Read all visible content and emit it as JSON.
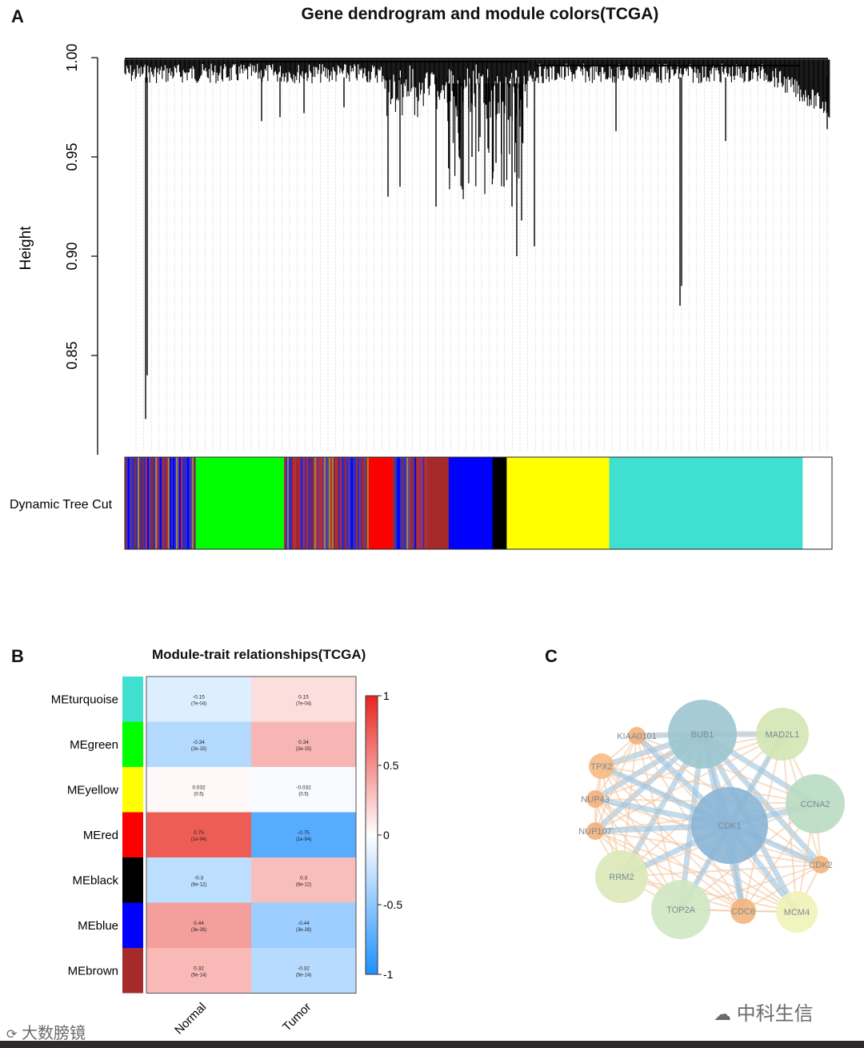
{
  "panelA": {
    "letter": "A",
    "title": "Gene dendrogram and module colors(TCGA)",
    "ylabel": "Height",
    "colorbar_label": "Dynamic Tree Cut"
  },
  "panelB": {
    "letter": "B",
    "title": "Module-trait relationships(TCGA)"
  },
  "panelC": {
    "letter": "C"
  },
  "watermark_left": "大数膀镜",
  "watermark_right": "中科生信",
  "chart_data": [
    {
      "type": "dendrogram",
      "title": "Gene dendrogram and module colors(TCGA)",
      "ylabel": "Height",
      "ylim": [
        0.8,
        1.0
      ],
      "yticks": [
        {
          "value": 0.85,
          "label": "0.85"
        },
        {
          "value": 0.9,
          "label": "0.90"
        },
        {
          "value": 0.95,
          "label": "0.95"
        },
        {
          "value": 1.0,
          "label": "1.00"
        }
      ],
      "module_bar": {
        "label": "Dynamic Tree Cut",
        "segments": [
          {
            "module": "mixed",
            "color": "#5b3aa0",
            "fraction": 0.1
          },
          {
            "module": "green",
            "color": "#00ff00",
            "fraction": 0.125
          },
          {
            "module": "mixed",
            "color": "#7a2b4a",
            "fraction": 0.12
          },
          {
            "module": "red",
            "color": "#ff0000",
            "fraction": 0.033
          },
          {
            "module": "mixed",
            "color": "#3a2ab5",
            "fraction": 0.05
          },
          {
            "module": "brown",
            "color": "#a52a2a",
            "fraction": 0.03
          },
          {
            "module": "blue",
            "color": "#0000ff",
            "fraction": 0.062
          },
          {
            "module": "black",
            "color": "#000000",
            "fraction": 0.02
          },
          {
            "module": "yellow",
            "color": "#ffff00",
            "fraction": 0.145
          },
          {
            "module": "turquoise",
            "color": "#40e0d0",
            "fraction": 0.273
          }
        ]
      }
    },
    {
      "type": "heatmap",
      "title": "Module-trait relationships(TCGA)",
      "rows": [
        "MEturquoise",
        "MEgreen",
        "MEyellow",
        "MEred",
        "MEblack",
        "MEblue",
        "MEbrown"
      ],
      "row_colors": [
        "#40e0d0",
        "#00ff00",
        "#ffff00",
        "#ff0000",
        "#000000",
        "#0000ff",
        "#a52a2a"
      ],
      "columns": [
        "Normal",
        "Tumor"
      ],
      "values": [
        [
          -0.15,
          0.15
        ],
        [
          -0.34,
          0.34
        ],
        [
          0.032,
          -0.032
        ],
        [
          0.75,
          -0.75
        ],
        [
          -0.3,
          0.3
        ],
        [
          0.44,
          -0.44
        ],
        [
          0.32,
          -0.32
        ]
      ],
      "cell_text": [
        [
          [
            "-0.15",
            "(7e-04)"
          ],
          [
            "0.15",
            "(7e-04)"
          ]
        ],
        [
          [
            "-0.34",
            "(2e-15)"
          ],
          [
            "0.34",
            "(2e-15)"
          ]
        ],
        [
          [
            "0.032",
            "(0.5)"
          ],
          [
            "-0.032",
            "(0.5)"
          ]
        ],
        [
          [
            "0.75",
            "(1e-94)"
          ],
          [
            "-0.75",
            "(1e-94)"
          ]
        ],
        [
          [
            "-0.3",
            "(6e-12)"
          ],
          [
            "0.3",
            "(6e-12)"
          ]
        ],
        [
          [
            "0.44",
            "(3e-26)"
          ],
          [
            "-0.44",
            "(3e-26)"
          ]
        ],
        [
          [
            "0.32",
            "(5e-14)"
          ],
          [
            "-0.32",
            "(5e-14)"
          ]
        ]
      ],
      "colorscale": {
        "min": -1,
        "max": 1,
        "low": "#1e90ff",
        "mid": "#ffffff",
        "high": "#e8251e"
      },
      "legend_ticks": [
        {
          "value": 1,
          "label": "1"
        },
        {
          "value": 0.5,
          "label": "0.5"
        },
        {
          "value": 0,
          "label": "0"
        },
        {
          "value": -0.5,
          "label": "-0.5"
        },
        {
          "value": -1,
          "label": "-1"
        }
      ]
    },
    {
      "type": "network",
      "nodes": [
        {
          "id": "BUB1",
          "label": "BUB1",
          "size": 6,
          "color": "#9cc5cf"
        },
        {
          "id": "MAD2L1",
          "label": "MAD2L1",
          "size": 4,
          "color": "#d3e6b4"
        },
        {
          "id": "CCNA2",
          "label": "CCNA2",
          "size": 5,
          "color": "#b9dbc3"
        },
        {
          "id": "CDK2",
          "label": "CDK2",
          "size": 1,
          "color": "#f6b47a"
        },
        {
          "id": "MCM4",
          "label": "MCM4",
          "size": 3,
          "color": "#f1f3b8"
        },
        {
          "id": "CDC6",
          "label": "CDC6",
          "size": 2,
          "color": "#f4b57e"
        },
        {
          "id": "TOP2A",
          "label": "TOP2A",
          "size": 5,
          "color": "#cfe7c2"
        },
        {
          "id": "RRM2",
          "label": "RRM2",
          "size": 4,
          "color": "#dce9b7"
        },
        {
          "id": "NUP107",
          "label": "NUP107",
          "size": 1,
          "color": "#f4b07a"
        },
        {
          "id": "NUP43",
          "label": "NUP43",
          "size": 1,
          "color": "#f4b07a"
        },
        {
          "id": "TPX2",
          "label": "TPX2",
          "size": 2,
          "color": "#f6bb84"
        },
        {
          "id": "KIAA0101",
          "label": "KIAA0101",
          "size": 1,
          "color": "#f4b07a"
        },
        {
          "id": "CDK1",
          "label": "CDK1",
          "size": 7,
          "color": "#8ab5d6"
        }
      ]
    }
  ]
}
